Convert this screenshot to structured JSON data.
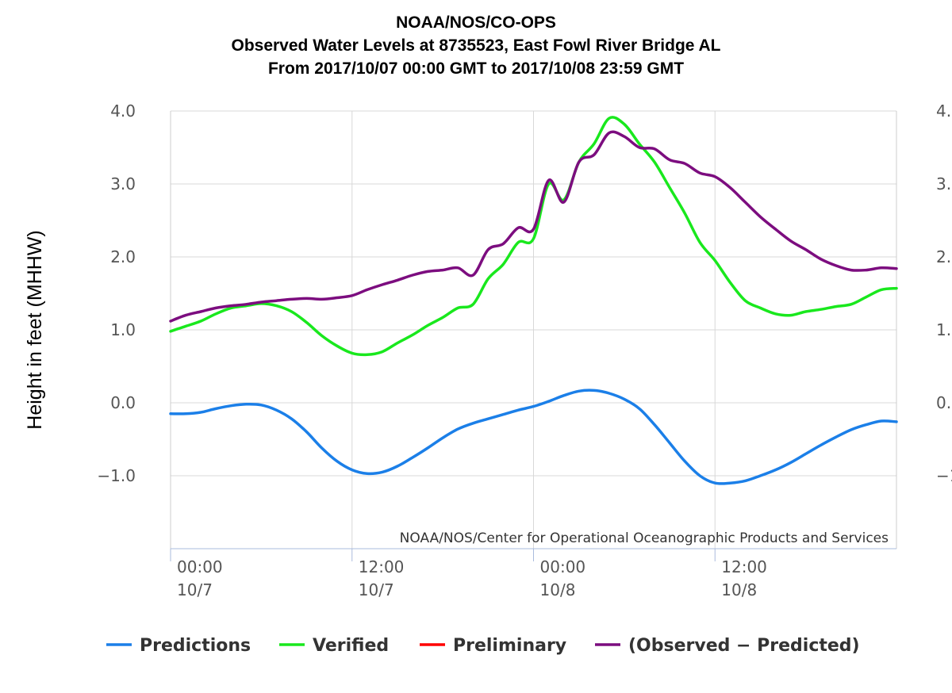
{
  "titles": {
    "line1": "NOAA/NOS/CO-OPS",
    "line2": "Observed Water Levels at 8735523, East Fowl River Bridge AL",
    "line3": "From 2017/10/07 00:00 GMT to 2017/10/08 23:59 GMT"
  },
  "credit": "NOAA/NOS/Center for Operational Oceanographic Products and Services",
  "chart_data": {
    "type": "line",
    "ylabel": "Height in feet (MHHW)",
    "xlabel": "",
    "ylim": [
      -2.0,
      4.0
    ],
    "xlim_hours": [
      0,
      48
    ],
    "y_ticks": [
      {
        "value": 4.0,
        "label": "4.0"
      },
      {
        "value": 3.0,
        "label": "3.0"
      },
      {
        "value": 2.0,
        "label": "2.0"
      },
      {
        "value": 1.0,
        "label": "1.0"
      },
      {
        "value": 0.0,
        "label": "0.0"
      },
      {
        "value": -1.0,
        "label": "−1.0"
      }
    ],
    "x_ticks": [
      {
        "hour": 0,
        "time": "00:00",
        "date": "10/7"
      },
      {
        "hour": 12,
        "time": "12:00",
        "date": "10/7"
      },
      {
        "hour": 24,
        "time": "00:00",
        "date": "10/8"
      },
      {
        "hour": 36,
        "time": "12:00",
        "date": "10/8"
      }
    ],
    "grid": true,
    "legend_position": "bottom",
    "series": [
      {
        "name": "Predictions",
        "color": "#1b7fe8",
        "x": [
          0,
          1,
          2,
          3,
          4,
          5,
          6,
          7,
          8,
          9,
          10,
          11,
          12,
          13,
          14,
          15,
          16,
          17,
          18,
          19,
          20,
          21,
          22,
          23,
          24,
          25,
          26,
          27,
          28,
          29,
          30,
          31,
          32,
          33,
          34,
          35,
          36,
          37,
          38,
          39,
          40,
          41,
          42,
          43,
          44,
          45,
          46,
          47,
          48
        ],
        "y": [
          -0.15,
          -0.15,
          -0.13,
          -0.08,
          -0.04,
          -0.02,
          -0.03,
          -0.1,
          -0.22,
          -0.4,
          -0.62,
          -0.8,
          -0.92,
          -0.97,
          -0.95,
          -0.87,
          -0.75,
          -0.62,
          -0.48,
          -0.36,
          -0.28,
          -0.22,
          -0.16,
          -0.1,
          -0.05,
          0.02,
          0.1,
          0.16,
          0.17,
          0.13,
          0.05,
          -0.08,
          -0.3,
          -0.55,
          -0.8,
          -1.0,
          -1.1,
          -1.1,
          -1.07,
          -1.0,
          -0.92,
          -0.82,
          -0.7,
          -0.58,
          -0.47,
          -0.37,
          -0.3,
          -0.25,
          -0.26
        ]
      },
      {
        "name": "Verified",
        "color": "#19e81d",
        "x": [
          0,
          1,
          2,
          3,
          4,
          5,
          6,
          7,
          8,
          9,
          10,
          11,
          12,
          13,
          14,
          15,
          16,
          17,
          18,
          19,
          20,
          21,
          22,
          23,
          24,
          25,
          26,
          27,
          28,
          29,
          30,
          31,
          32,
          33,
          34,
          35,
          36,
          37,
          38,
          39,
          40,
          41,
          42,
          43,
          44,
          45,
          46,
          47,
          48
        ],
        "y": [
          0.98,
          1.05,
          1.12,
          1.22,
          1.3,
          1.33,
          1.36,
          1.33,
          1.25,
          1.1,
          0.92,
          0.78,
          0.68,
          0.66,
          0.7,
          0.82,
          0.93,
          1.06,
          1.17,
          1.3,
          1.35,
          1.7,
          1.9,
          2.2,
          2.25,
          3.0,
          2.78,
          3.3,
          3.55,
          3.9,
          3.82,
          3.55,
          3.3,
          2.95,
          2.6,
          2.2,
          1.95,
          1.65,
          1.4,
          1.3,
          1.22,
          1.2,
          1.25,
          1.28,
          1.32,
          1.35,
          1.45,
          1.55,
          1.57
        ]
      },
      {
        "name": "Preliminary",
        "color": "#ff0000",
        "x": [],
        "y": []
      },
      {
        "name": "(Observed - Predicted)",
        "color": "#7c0d7f",
        "x": [
          0,
          1,
          2,
          3,
          4,
          5,
          6,
          7,
          8,
          9,
          10,
          11,
          12,
          13,
          14,
          15,
          16,
          17,
          18,
          19,
          20,
          21,
          22,
          23,
          24,
          25,
          26,
          27,
          28,
          29,
          30,
          31,
          32,
          33,
          34,
          35,
          36,
          37,
          38,
          39,
          40,
          41,
          42,
          43,
          44,
          45,
          46,
          47,
          48
        ],
        "y": [
          1.12,
          1.2,
          1.25,
          1.3,
          1.33,
          1.35,
          1.38,
          1.4,
          1.42,
          1.43,
          1.42,
          1.44,
          1.47,
          1.55,
          1.62,
          1.68,
          1.75,
          1.8,
          1.82,
          1.85,
          1.75,
          2.1,
          2.18,
          2.4,
          2.38,
          3.05,
          2.75,
          3.3,
          3.4,
          3.7,
          3.65,
          3.5,
          3.48,
          3.33,
          3.28,
          3.15,
          3.1,
          2.95,
          2.75,
          2.55,
          2.38,
          2.22,
          2.1,
          1.97,
          1.88,
          1.82,
          1.82,
          1.85,
          1.84
        ]
      }
    ]
  }
}
